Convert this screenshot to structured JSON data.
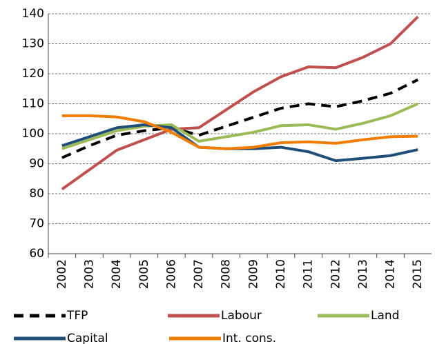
{
  "chart_data": {
    "type": "line",
    "categories": [
      "2002",
      "2003",
      "2004",
      "2005",
      "2006",
      "2007",
      "2008",
      "2009",
      "2010",
      "2011",
      "2012",
      "2013",
      "2014",
      "2015"
    ],
    "series": [
      {
        "name": "TFP",
        "color": "#000000",
        "line_style": "dashed",
        "values": [
          92,
          96,
          99.5,
          101,
          102,
          99.5,
          102.5,
          105.5,
          108.5,
          110,
          109,
          111,
          113.5,
          118
        ]
      },
      {
        "name": "Labour",
        "color": "#c0504d",
        "line_style": "solid",
        "values": [
          81.5,
          88,
          94.5,
          98,
          101.5,
          102,
          108,
          114,
          119,
          122.3,
          122,
          125.5,
          130,
          139
        ]
      },
      {
        "name": "Land",
        "color": "#9bbb59",
        "line_style": "solid",
        "values": [
          95,
          98,
          101,
          102.5,
          103,
          97.5,
          99,
          100.5,
          102.7,
          103,
          101.5,
          103.5,
          106,
          110
        ]
      },
      {
        "name": "Capital",
        "color": "#1f4e79",
        "line_style": "solid",
        "values": [
          96,
          99,
          102,
          103,
          102,
          95.5,
          95,
          95,
          95.5,
          94,
          91,
          91.8,
          92.7,
          94.7
        ]
      },
      {
        "name": "Int. cons.",
        "color": "#f07c00",
        "line_style": "solid",
        "values": [
          106,
          106,
          105.6,
          104,
          100.5,
          95.5,
          95,
          95.5,
          97,
          97.3,
          96.8,
          98,
          99,
          99.2
        ]
      }
    ],
    "ylim": [
      60,
      140
    ],
    "yticks": [
      60,
      70,
      80,
      90,
      100,
      110,
      120,
      130,
      140
    ],
    "grid": true
  }
}
